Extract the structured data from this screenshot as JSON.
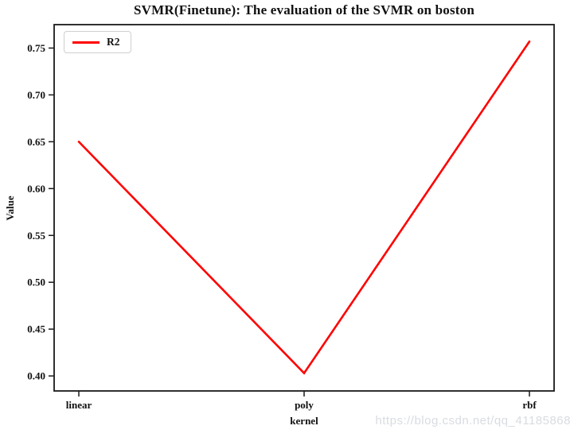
{
  "chart_data": {
    "type": "line",
    "title": "SVMR(Finetune): The evaluation of the SVMR on boston",
    "xlabel": "kernel",
    "ylabel": "Value",
    "categories": [
      "linear",
      "poly",
      "rbf"
    ],
    "series": [
      {
        "name": "R2",
        "color": "#ff0000",
        "values": [
          0.65,
          0.403,
          0.757
        ]
      }
    ],
    "yticks": [
      0.4,
      0.45,
      0.5,
      0.55,
      0.6,
      0.65,
      0.7,
      0.75
    ],
    "ylim": [
      0.384,
      0.775
    ],
    "grid": false,
    "legend_position": "upper left",
    "axis_color": "#1a1a1a",
    "background_color": "#ffffff"
  },
  "watermark": {
    "text": "https://blog.csdn.net/qq_41185868",
    "color": "#d8dce1"
  }
}
